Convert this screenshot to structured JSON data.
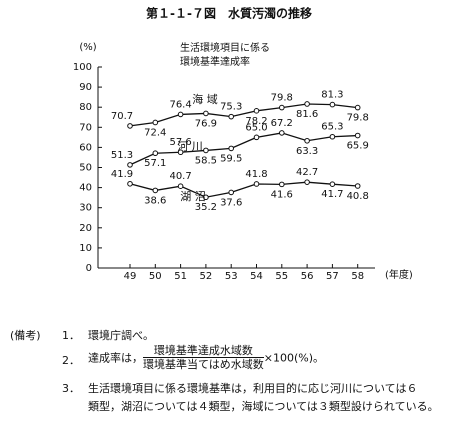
{
  "chart_data": {
    "type": "line",
    "title": "第１-１-７図　水質汚濁の推移",
    "subtitle": [
      "生活環境項目に係る",
      "環境基準達成率"
    ],
    "y_label": "(%)",
    "x_label": "(年度)",
    "categories": [
      "49",
      "50",
      "51",
      "52",
      "53",
      "54",
      "55",
      "56",
      "57",
      "58"
    ],
    "ylim": [
      0,
      100
    ],
    "yticks": [
      0,
      10,
      20,
      30,
      40,
      50,
      60,
      70,
      80,
      90,
      100
    ],
    "series": [
      {
        "name": "海 域",
        "color": "#111111",
        "values": [
          70.7,
          72.4,
          76.4,
          76.9,
          75.3,
          78.2,
          79.8,
          81.6,
          81.3,
          79.8
        ],
        "value_labels": [
          "70.7",
          "72.4",
          "76.4",
          "76.9",
          "75.3",
          "78.2",
          "79.8",
          "81.6",
          "81.3",
          "79.8"
        ]
      },
      {
        "name": "河 川",
        "color": "#111111",
        "values": [
          51.3,
          57.1,
          57.6,
          58.5,
          59.5,
          65.0,
          67.2,
          63.3,
          65.3,
          65.9
        ],
        "value_labels": [
          "51.3",
          "57.1",
          "57.6",
          "58.5",
          "59.5",
          "65.0",
          "67.2",
          "63.3",
          "65.3",
          "65.9"
        ]
      },
      {
        "name": "湖 沼",
        "color": "#111111",
        "values": [
          41.9,
          38.6,
          40.7,
          35.2,
          37.6,
          41.8,
          41.6,
          42.7,
          41.7,
          40.8
        ],
        "value_labels": [
          "41.9",
          "38.6",
          "40.7",
          "35.2",
          "37.6",
          "41.8",
          "41.6",
          "42.7",
          "41.7",
          "40.8"
        ]
      }
    ]
  },
  "notes": {
    "label": "(備考)",
    "items": [
      {
        "num": "1．",
        "text": "環境庁調べ。"
      },
      {
        "num": "2．",
        "text": "達成率は，",
        "numerator": "環境基準達成水域数",
        "denominator": "環境基準当てはめ水域数",
        "suffix": "×100(%)。"
      },
      {
        "num": "3．",
        "lines": [
          "生活環境項目に係る環境基準は，利用目的に応じ河川については６",
          "類型，湖沼については４類型，海域については３類型設けられている。"
        ]
      }
    ]
  }
}
